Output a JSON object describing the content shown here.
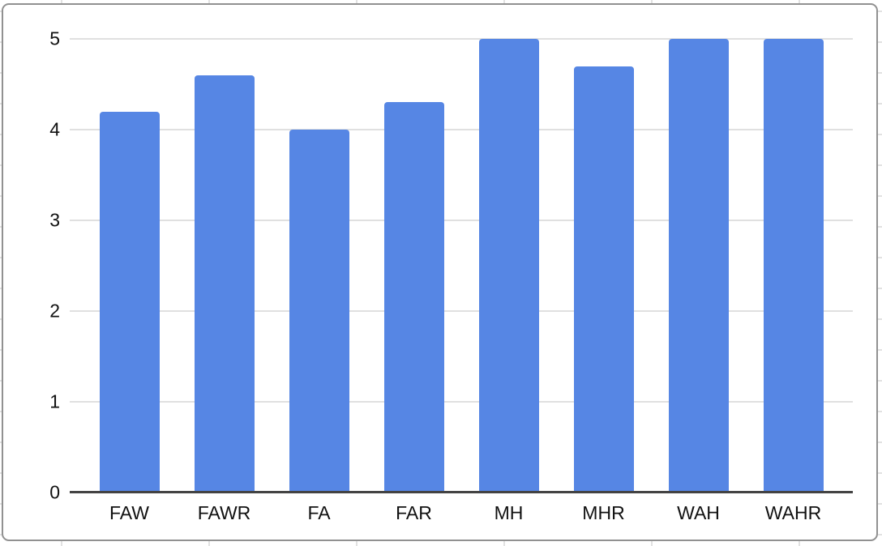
{
  "chart_data": {
    "type": "bar",
    "categories": [
      "FAW",
      "FAWR",
      "FA",
      "FAR",
      "MH",
      "MHR",
      "WAH",
      "WAHR"
    ],
    "values": [
      4.2,
      4.6,
      4.0,
      4.3,
      5.0,
      4.7,
      5.0,
      5.0
    ],
    "title": "",
    "xlabel": "",
    "ylabel": "",
    "ylim": [
      0,
      5
    ],
    "yticks": [
      0,
      1,
      2,
      3,
      4,
      5
    ],
    "grid": true,
    "legend": "none",
    "bar_color": "#5686e4",
    "gridline_color": "#e0e0e0",
    "axis_line_color": "#434343",
    "tick_label_color": "#111111",
    "chart_border_color": "#919191",
    "sheet_gridline_color": "#e2e2e2"
  }
}
